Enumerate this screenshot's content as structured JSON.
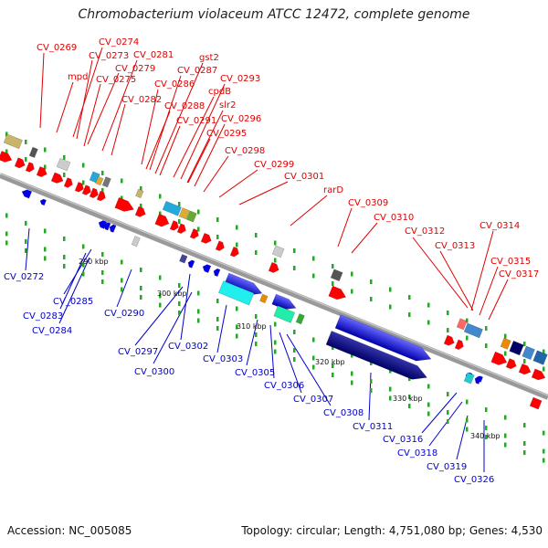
{
  "title": "Chromobacterium violaceum ATCC 12472, complete genome",
  "footer": {
    "accession": "Accession: NC_005085",
    "summary": "Topology: circular; Length: 4,751,080 bp; Genes: 4,530"
  },
  "colors": {
    "forward_label": "#e00000",
    "reverse_label": "#0000cc",
    "backbone": "#888888",
    "forward_gene": "#ff0000",
    "reverse_gene": "#0000ee",
    "dots": "#22aa22"
  },
  "ticks": [
    "290 kbp",
    "300 kbp",
    "310 kbp",
    "320 kbp",
    "330 kbp",
    "340 kbp"
  ],
  "top_labels": [
    "CV_0269",
    "mpd",
    "CV_0274",
    "CV_0273",
    "CV_0279",
    "CV_0275",
    "CV_0281",
    "CV_0282",
    "gst2",
    "CV_0287",
    "CV_0286",
    "CV_0293",
    "cpdB",
    "CV_0288",
    "slr2",
    "CV_0291",
    "CV_0296",
    "CV_0295",
    "CV_0298",
    "CV_0299",
    "CV_0301",
    "rarD",
    "CV_0309",
    "CV_0310",
    "CV_0312",
    "CV_0314",
    "CV_0313",
    "CV_0315",
    "CV_0317"
  ],
  "bottom_labels": [
    "CV_0272",
    "CV_0283",
    "CV_0285",
    "CV_0284",
    "CV_0290",
    "CV_0297",
    "CV_0300",
    "CV_0302",
    "CV_0303",
    "CV_0305",
    "CV_0306",
    "CV_0307",
    "CV_0308",
    "CV_0311",
    "CV_0316",
    "CV_0318",
    "CV_0319",
    "CV_0326"
  ]
}
